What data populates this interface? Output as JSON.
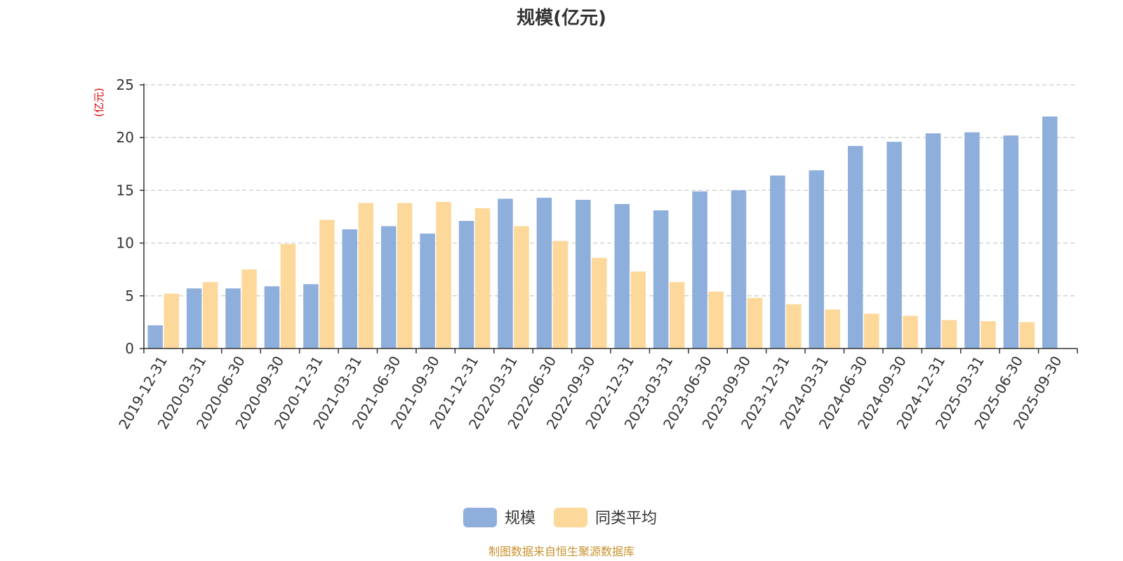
{
  "chart_data": {
    "type": "bar",
    "title": "规模(亿元)",
    "ylabel": "(亿元)",
    "ylim": [
      0,
      25
    ],
    "yticks": [
      0,
      5,
      10,
      15,
      20,
      25
    ],
    "grid": true,
    "legend_position": "bottom",
    "categories": [
      "2019-12-31",
      "2020-03-31",
      "2020-06-30",
      "2020-09-30",
      "2020-12-31",
      "2021-03-31",
      "2021-06-30",
      "2021-09-30",
      "2021-12-31",
      "2022-03-31",
      "2022-06-30",
      "2022-09-30",
      "2022-12-31",
      "2023-03-31",
      "2023-06-30",
      "2023-09-30",
      "2023-12-31",
      "2024-03-31",
      "2024-06-30",
      "2024-09-30",
      "2024-12-31",
      "2025-03-31",
      "2025-06-30",
      "2025-09-30"
    ],
    "series": [
      {
        "name": "规模",
        "color": "#8eaedb",
        "values": [
          2.2,
          5.7,
          5.7,
          5.9,
          6.1,
          11.3,
          11.6,
          10.9,
          12.1,
          14.2,
          14.3,
          14.1,
          13.7,
          13.1,
          14.9,
          15.0,
          16.4,
          16.9,
          19.2,
          19.6,
          20.4,
          20.5,
          20.2,
          22.0
        ]
      },
      {
        "name": "同类平均",
        "color": "#fdd89b",
        "values": [
          5.2,
          6.3,
          7.5,
          9.9,
          12.2,
          13.8,
          13.8,
          13.9,
          13.3,
          11.6,
          10.2,
          8.6,
          7.3,
          6.3,
          5.4,
          4.8,
          4.2,
          3.7,
          3.3,
          3.1,
          2.7,
          2.6,
          2.5,
          null
        ]
      }
    ]
  },
  "source": "制图数据来自恒生聚源数据库"
}
